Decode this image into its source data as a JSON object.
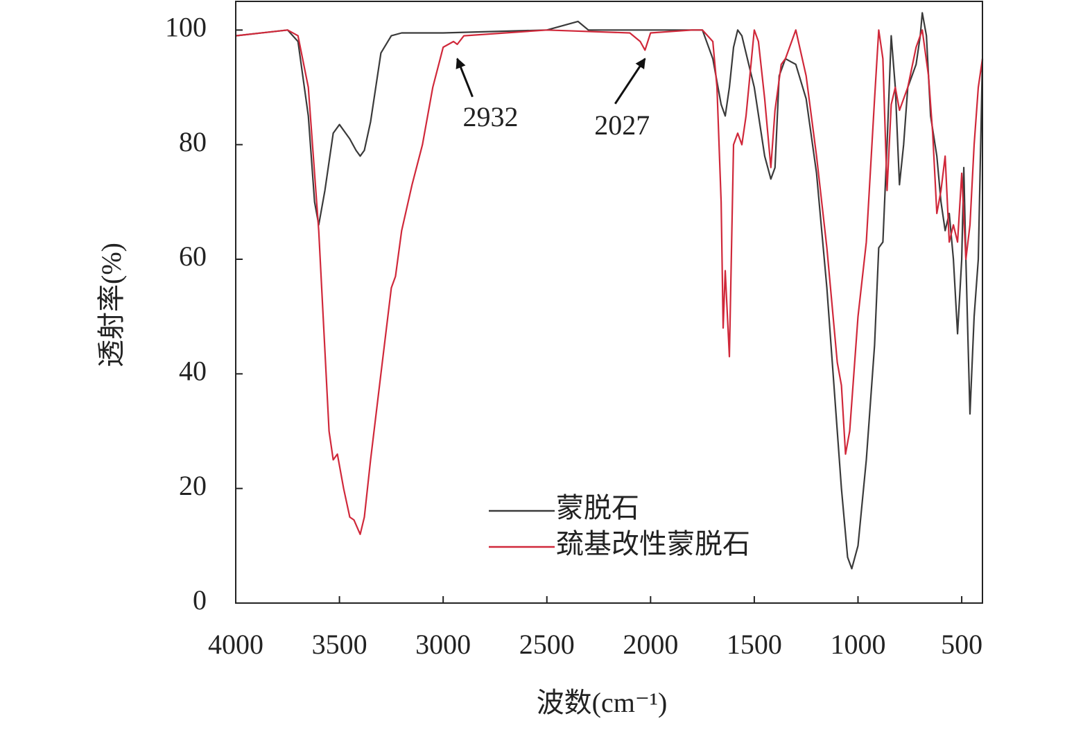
{
  "chart_data": {
    "type": "line",
    "xlabel": "波数(cm⁻¹)",
    "ylabel": "透射率(%)",
    "xlim": [
      4000,
      400
    ],
    "ylim": [
      0,
      105
    ],
    "xticks": [
      4000,
      3500,
      3000,
      2500,
      2000,
      1500,
      1000,
      500
    ],
    "yticks": [
      0,
      20,
      40,
      60,
      80,
      100
    ],
    "legend": "lower right",
    "series": [
      {
        "name": "蒙脱石",
        "color": "#3a3a3a",
        "x": [
          4000,
          3750,
          3700,
          3650,
          3620,
          3600,
          3570,
          3530,
          3500,
          3450,
          3420,
          3400,
          3380,
          3350,
          3300,
          3250,
          3200,
          3000,
          2500,
          2350,
          2300,
          2000,
          1800,
          1750,
          1700,
          1660,
          1640,
          1620,
          1600,
          1580,
          1560,
          1500,
          1450,
          1420,
          1400,
          1380,
          1350,
          1300,
          1250,
          1200,
          1150,
          1100,
          1080,
          1050,
          1030,
          1000,
          960,
          920,
          900,
          880,
          860,
          840,
          820,
          800,
          780,
          760,
          740,
          720,
          700,
          690,
          670,
          650,
          620,
          600,
          580,
          560,
          540,
          520,
          500,
          490,
          480,
          470,
          460,
          440,
          420,
          400
        ],
        "values": [
          99,
          100,
          98,
          85,
          70,
          66,
          72,
          82,
          83.5,
          81,
          79,
          78,
          79,
          84,
          96,
          99,
          99.5,
          99.5,
          100,
          101.5,
          100,
          100,
          100,
          100,
          95,
          87,
          85,
          90,
          97,
          100,
          99,
          90,
          78,
          74,
          76,
          92,
          95,
          94,
          88,
          75,
          55,
          30,
          20,
          8,
          6,
          10,
          25,
          45,
          62,
          63,
          80,
          99,
          90,
          73,
          80,
          90,
          92,
          94,
          99,
          103,
          99,
          85,
          78,
          70,
          65,
          68,
          60,
          47,
          60,
          76,
          60,
          46,
          33,
          50,
          60,
          95
        ]
      },
      {
        "name": "巯基改性蒙脱石",
        "color": "#d0283a",
        "x": [
          4000,
          3750,
          3700,
          3650,
          3600,
          3550,
          3530,
          3510,
          3480,
          3450,
          3430,
          3400,
          3380,
          3350,
          3300,
          3250,
          3230,
          3200,
          3150,
          3100,
          3050,
          3000,
          2950,
          2932,
          2900,
          2500,
          2100,
          2050,
          2027,
          2000,
          1800,
          1750,
          1700,
          1680,
          1660,
          1650,
          1640,
          1620,
          1600,
          1580,
          1560,
          1540,
          1500,
          1480,
          1450,
          1420,
          1400,
          1370,
          1350,
          1300,
          1250,
          1200,
          1150,
          1100,
          1080,
          1060,
          1040,
          1000,
          960,
          920,
          900,
          880,
          860,
          840,
          820,
          800,
          760,
          720,
          690,
          660,
          640,
          620,
          600,
          580,
          560,
          540,
          520,
          500,
          480,
          460,
          440,
          420,
          400
        ],
        "values": [
          99,
          100,
          99,
          90,
          65,
          30,
          25,
          26,
          20,
          15,
          14.5,
          12,
          15,
          25,
          40,
          55,
          57,
          65,
          73,
          80,
          90,
          97,
          98,
          97.5,
          99,
          100,
          99.5,
          98,
          96.5,
          99.5,
          100,
          100,
          98,
          90,
          70,
          48,
          58,
          43,
          80,
          82,
          80,
          85,
          100,
          98,
          88,
          76,
          86,
          94,
          95,
          100,
          92,
          78,
          62,
          42,
          38,
          26,
          30,
          50,
          63,
          88,
          100,
          95,
          72,
          87,
          90,
          86,
          90,
          97,
          100,
          92,
          82,
          68,
          72,
          78,
          63,
          66,
          63,
          75,
          60,
          66,
          80,
          90,
          95
        ]
      }
    ],
    "annotations": [
      {
        "label": "2932",
        "x": 2932,
        "y": 95
      },
      {
        "label": "2027",
        "x": 2027,
        "y": 95
      }
    ]
  }
}
